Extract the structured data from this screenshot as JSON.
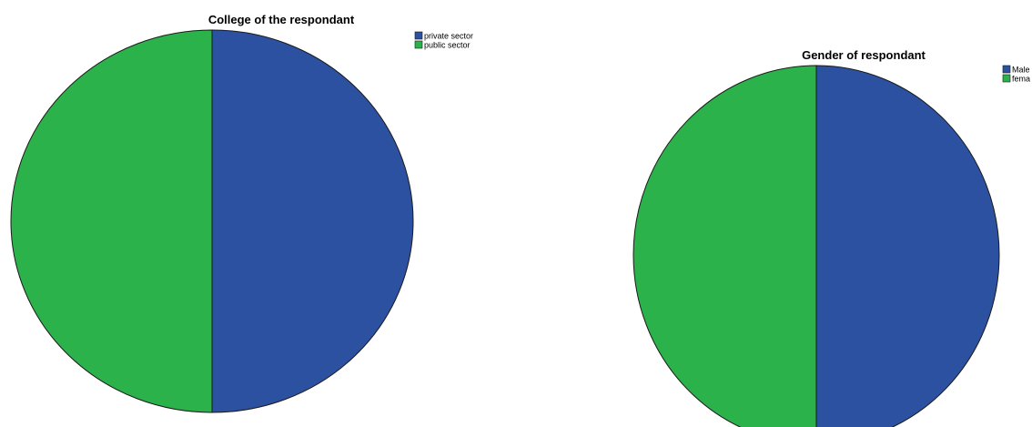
{
  "chart_data": [
    {
      "type": "pie",
      "title": "College of the respondant",
      "categories": [
        "private sector",
        "public sector"
      ],
      "values": [
        50,
        50
      ],
      "colors": [
        "#2c51a1",
        "#2bb24b"
      ],
      "legend_position": "top-right"
    },
    {
      "type": "pie",
      "title": "Gender of respondant",
      "categories": [
        "Male",
        "fema"
      ],
      "values": [
        50,
        50
      ],
      "colors": [
        "#2c51a1",
        "#2bb24b"
      ],
      "legend_position": "top-right"
    }
  ]
}
